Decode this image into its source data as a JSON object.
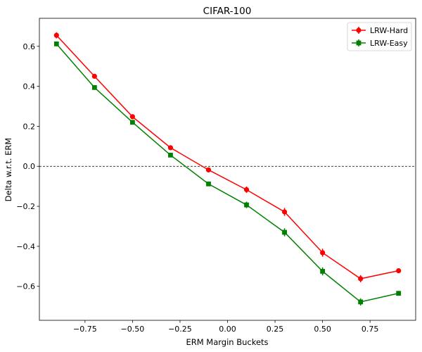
{
  "chart_data": {
    "type": "line",
    "title": "CIFAR-100",
    "xlabel": "ERM Margin Buckets",
    "ylabel": "Delta w.r.t. ERM",
    "xlim": [
      -0.99,
      0.99
    ],
    "ylim": [
      -0.77,
      0.74
    ],
    "xticks": [
      -0.75,
      -0.5,
      -0.25,
      0.0,
      0.25,
      0.5,
      0.75
    ],
    "xtick_labels": [
      "−0.75",
      "−0.50",
      "−0.25",
      "0.00",
      "0.25",
      "0.50",
      "0.75"
    ],
    "yticks": [
      -0.6,
      -0.4,
      -0.2,
      0.0,
      0.2,
      0.4,
      0.6
    ],
    "ytick_labels": [
      "−0.6",
      "−0.4",
      "−0.2",
      "0.0",
      "0.2",
      "0.4",
      "0.6"
    ],
    "x": [
      -0.9,
      -0.7,
      -0.5,
      -0.3,
      -0.1,
      0.1,
      0.3,
      0.5,
      0.7,
      0.9
    ],
    "reference_line": {
      "y": 0.0,
      "style": "dashed",
      "color": "#000000"
    },
    "legend_position": "top-right",
    "series": [
      {
        "name": "LRW-Hard",
        "color": "#ff0000",
        "marker": "circle",
        "values": [
          0.655,
          0.45,
          0.248,
          0.093,
          -0.018,
          -0.117,
          -0.228,
          -0.432,
          -0.562,
          -0.522
        ],
        "errors": [
          0.015,
          0.008,
          0.008,
          0.007,
          0.008,
          0.016,
          0.02,
          0.02,
          0.018,
          0.008
        ]
      },
      {
        "name": "LRW-Easy",
        "color": "#008000",
        "marker": "square",
        "values": [
          0.612,
          0.394,
          0.22,
          0.056,
          -0.088,
          -0.193,
          -0.33,
          -0.525,
          -0.678,
          -0.635
        ],
        "errors": [
          0.012,
          0.008,
          0.008,
          0.008,
          0.008,
          0.016,
          0.02,
          0.02,
          0.018,
          0.008
        ]
      }
    ]
  }
}
